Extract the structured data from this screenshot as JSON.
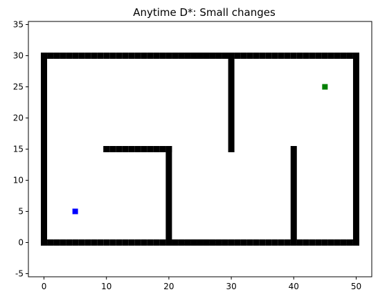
{
  "chart_data": {
    "type": "scatter",
    "title": "Anytime D*: Small changes",
    "xlabel": "",
    "ylabel": "",
    "xlim": [
      -2.5,
      52.5
    ],
    "ylim": [
      -5.5,
      35.5
    ],
    "xticks": [
      0,
      10,
      20,
      30,
      40,
      50
    ],
    "yticks": [
      -5,
      0,
      5,
      10,
      15,
      20,
      25,
      30,
      35
    ],
    "grid": false,
    "obstacle_segments": [
      {
        "name": "bottom-wall",
        "from": [
          0,
          0
        ],
        "to": [
          50,
          0
        ]
      },
      {
        "name": "top-wall",
        "from": [
          0,
          30
        ],
        "to": [
          50,
          30
        ]
      },
      {
        "name": "left-wall",
        "from": [
          0,
          0
        ],
        "to": [
          0,
          30
        ]
      },
      {
        "name": "right-wall",
        "from": [
          50,
          0
        ],
        "to": [
          50,
          30
        ]
      },
      {
        "name": "inner-horizontal-wall",
        "from": [
          10,
          15
        ],
        "to": [
          20,
          15
        ]
      },
      {
        "name": "inner-vertical-wall-x20",
        "from": [
          20,
          0
        ],
        "to": [
          20,
          15
        ]
      },
      {
        "name": "inner-vertical-wall-x30",
        "from": [
          30,
          15
        ],
        "to": [
          30,
          30
        ]
      },
      {
        "name": "inner-vertical-wall-x40",
        "from": [
          40,
          0
        ],
        "to": [
          40,
          15
        ]
      }
    ],
    "series": [
      {
        "name": "obstacles",
        "color": "#000000",
        "marker": "square"
      },
      {
        "name": "start",
        "color": "#0000ff",
        "marker": "square",
        "x": [
          5
        ],
        "y": [
          5
        ]
      },
      {
        "name": "goal",
        "color": "#008000",
        "marker": "square",
        "x": [
          45
        ],
        "y": [
          25
        ]
      }
    ]
  }
}
